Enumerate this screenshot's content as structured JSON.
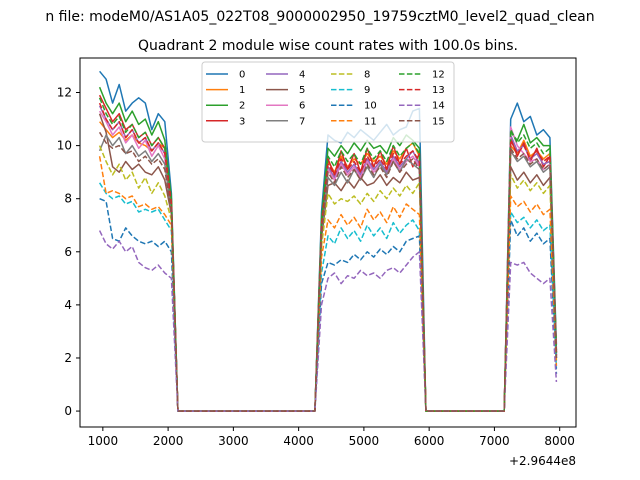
{
  "figure": {
    "suptitle": "n file: modeM0/AS1A05_022T08_9000002950_19759cztM0_level2_quad_clean"
  },
  "chart_data": {
    "type": "line",
    "title": "Quadrant 2 module wise count rates with 100.0s bins.",
    "xlabel": "",
    "ylabel": "",
    "x_offset_label": "+2.9644e8",
    "xlim": [
      650,
      8250
    ],
    "ylim": [
      -0.6,
      13.3
    ],
    "xticks": [
      1000,
      2000,
      3000,
      4000,
      5000,
      6000,
      7000,
      8000
    ],
    "yticks": [
      0,
      2,
      4,
      6,
      8,
      10,
      12
    ],
    "grid": false,
    "legend_location": "upper center",
    "legend_columns": 4,
    "x": [
      950,
      1050,
      1150,
      1250,
      1350,
      1450,
      1550,
      1650,
      1750,
      1850,
      1950,
      2050,
      2150,
      2250,
      2350,
      2450,
      2550,
      2650,
      2750,
      2850,
      2950,
      3050,
      3150,
      3250,
      3350,
      3450,
      3550,
      3650,
      3750,
      3850,
      3950,
      4050,
      4150,
      4250,
      4350,
      4450,
      4550,
      4650,
      4750,
      4850,
      4950,
      5050,
      5150,
      5250,
      5350,
      5450,
      5550,
      5650,
      5750,
      5850,
      5950,
      6050,
      6150,
      6250,
      6350,
      6450,
      6550,
      6650,
      6750,
      6850,
      6950,
      7050,
      7150,
      7250,
      7350,
      7450,
      7550,
      7650,
      7750,
      7850,
      7950
    ],
    "series": [
      {
        "name": "0",
        "color": "#1f77b4",
        "dash": "solid",
        "values": [
          12.8,
          12.5,
          11.6,
          12.3,
          11.3,
          11.6,
          11.8,
          11.6,
          10.6,
          11.2,
          10.9,
          8.2,
          0,
          0,
          0,
          0,
          0,
          0,
          0,
          0,
          0,
          0,
          0,
          0,
          0,
          0,
          0,
          0,
          0,
          0,
          0,
          0,
          0,
          0,
          7.5,
          10.4,
          10.2,
          10.1,
          10.5,
          10.3,
          10.6,
          10.4,
          10.2,
          10.5,
          10.8,
          10.4,
          10.6,
          10.7,
          11.3,
          11.4,
          0,
          0,
          0,
          0,
          0,
          0,
          0,
          0,
          0,
          0,
          0,
          0,
          0,
          11.0,
          11.6,
          10.9,
          11.1,
          10.4,
          10.6,
          10.3,
          2.5
        ]
      },
      {
        "name": "1",
        "color": "#ff7f0e",
        "dash": "solid",
        "values": [
          10.9,
          10.6,
          10.3,
          10.5,
          10.2,
          10.4,
          10.1,
          10.0,
          9.8,
          10.1,
          9.9,
          7.9,
          0,
          0,
          0,
          0,
          0,
          0,
          0,
          0,
          0,
          0,
          0,
          0,
          0,
          0,
          0,
          0,
          0,
          0,
          0,
          0,
          0,
          0,
          6.8,
          9.4,
          9.0,
          9.6,
          9.2,
          9.5,
          9.3,
          9.7,
          9.4,
          9.6,
          9.3,
          9.8,
          9.5,
          9.9,
          10.1,
          9.6,
          0,
          0,
          0,
          0,
          0,
          0,
          0,
          0,
          0,
          0,
          0,
          0,
          0,
          10.0,
          9.7,
          10.2,
          9.6,
          9.8,
          9.5,
          9.7,
          2.2
        ]
      },
      {
        "name": "2",
        "color": "#2ca02c",
        "dash": "solid",
        "values": [
          12.2,
          11.6,
          11.2,
          11.6,
          10.9,
          11.3,
          10.8,
          11.0,
          10.4,
          10.9,
          10.2,
          8.0,
          0,
          0,
          0,
          0,
          0,
          0,
          0,
          0,
          0,
          0,
          0,
          0,
          0,
          0,
          0,
          0,
          0,
          0,
          0,
          0,
          0,
          0,
          7.2,
          9.9,
          9.6,
          10.0,
          9.7,
          10.1,
          9.8,
          10.2,
          9.9,
          10.0,
          9.7,
          10.3,
          10.0,
          10.4,
          10.2,
          9.9,
          0,
          0,
          0,
          0,
          0,
          0,
          0,
          0,
          0,
          0,
          0,
          0,
          0,
          10.5,
          10.2,
          10.8,
          10.1,
          10.3,
          10.0,
          10.0,
          2.3
        ]
      },
      {
        "name": "3",
        "color": "#d62728",
        "dash": "solid",
        "values": [
          11.9,
          11.4,
          10.9,
          11.2,
          10.6,
          10.8,
          10.3,
          10.5,
          10.0,
          10.3,
          9.9,
          7.8,
          0,
          0,
          0,
          0,
          0,
          0,
          0,
          0,
          0,
          0,
          0,
          0,
          0,
          0,
          0,
          0,
          0,
          0,
          0,
          0,
          0,
          0,
          7.0,
          9.5,
          8.9,
          9.8,
          9.1,
          9.7,
          9.0,
          9.9,
          9.2,
          9.8,
          9.1,
          10.0,
          9.3,
          9.9,
          9.2,
          9.7,
          0,
          0,
          0,
          0,
          0,
          0,
          0,
          0,
          0,
          0,
          0,
          0,
          0,
          10.3,
          9.6,
          10.1,
          9.4,
          9.9,
          9.2,
          9.6,
          2.2
        ]
      },
      {
        "name": "4",
        "color": "#9467bd",
        "dash": "solid",
        "values": [
          11.5,
          11.0,
          10.6,
          10.9,
          10.3,
          10.6,
          10.1,
          10.3,
          9.8,
          10.1,
          9.7,
          7.7,
          0,
          0,
          0,
          0,
          0,
          0,
          0,
          0,
          0,
          0,
          0,
          0,
          0,
          0,
          0,
          0,
          0,
          0,
          0,
          0,
          0,
          0,
          6.9,
          9.2,
          8.8,
          9.4,
          9.0,
          9.3,
          8.9,
          9.5,
          9.1,
          9.4,
          9.0,
          9.6,
          9.2,
          9.5,
          9.8,
          9.3,
          0,
          0,
          0,
          0,
          0,
          0,
          0,
          0,
          0,
          0,
          0,
          0,
          0,
          10.4,
          9.8,
          10.0,
          9.5,
          9.7,
          9.3,
          9.4,
          2.1
        ]
      },
      {
        "name": "5",
        "color": "#8c564b",
        "dash": "solid",
        "values": [
          11.2,
          10.5,
          9.2,
          9.0,
          9.4,
          9.1,
          9.3,
          9.0,
          8.9,
          9.2,
          8.7,
          7.4,
          0,
          0,
          0,
          0,
          0,
          0,
          0,
          0,
          0,
          0,
          0,
          0,
          0,
          0,
          0,
          0,
          0,
          0,
          0,
          0,
          0,
          0,
          6.5,
          8.5,
          8.6,
          8.3,
          8.7,
          8.4,
          8.8,
          8.5,
          8.6,
          8.9,
          8.5,
          8.8,
          8.6,
          9.0,
          8.7,
          8.8,
          0,
          0,
          0,
          0,
          0,
          0,
          0,
          0,
          0,
          0,
          0,
          0,
          0,
          9.2,
          8.7,
          9.0,
          8.6,
          8.9,
          8.5,
          8.8,
          2.0
        ]
      },
      {
        "name": "6",
        "color": "#e377c2",
        "dash": "solid",
        "values": [
          11.3,
          10.9,
          10.4,
          10.7,
          10.1,
          10.4,
          9.9,
          10.2,
          9.6,
          10.0,
          9.5,
          7.6,
          0,
          0,
          0,
          0,
          0,
          0,
          0,
          0,
          0,
          0,
          0,
          0,
          0,
          0,
          0,
          0,
          0,
          0,
          0,
          0,
          0,
          0,
          6.8,
          9.1,
          8.7,
          9.3,
          8.9,
          9.2,
          8.8,
          9.4,
          9.0,
          9.3,
          8.9,
          9.5,
          9.1,
          9.4,
          9.6,
          9.2,
          0,
          0,
          0,
          0,
          0,
          0,
          0,
          0,
          0,
          0,
          0,
          0,
          0,
          10.7,
          10.0,
          9.7,
          9.4,
          9.5,
          9.1,
          9.3,
          2.1
        ]
      },
      {
        "name": "7",
        "color": "#7f7f7f",
        "dash": "solid",
        "values": [
          9.8,
          10.4,
          10.0,
          10.3,
          9.7,
          10.0,
          9.6,
          9.8,
          9.4,
          9.7,
          9.3,
          7.5,
          0,
          0,
          0,
          0,
          0,
          0,
          0,
          0,
          0,
          0,
          0,
          0,
          0,
          0,
          0,
          0,
          0,
          0,
          0,
          0,
          0,
          0,
          6.6,
          8.8,
          8.5,
          9.0,
          8.6,
          9.1,
          8.7,
          9.2,
          8.8,
          9.3,
          8.9,
          9.4,
          9.0,
          9.5,
          9.3,
          9.1,
          0,
          0,
          0,
          0,
          0,
          0,
          0,
          0,
          0,
          0,
          0,
          0,
          0,
          9.8,
          9.4,
          9.6,
          9.2,
          9.4,
          9.0,
          9.2,
          2.0
        ]
      },
      {
        "name": "8",
        "color": "#bcbd22",
        "dash": "dashed",
        "values": [
          10.0,
          9.4,
          8.9,
          9.3,
          8.7,
          9.0,
          8.4,
          8.8,
          8.2,
          8.6,
          8.1,
          7.2,
          0,
          0,
          0,
          0,
          0,
          0,
          0,
          0,
          0,
          0,
          0,
          0,
          0,
          0,
          0,
          0,
          0,
          0,
          0,
          0,
          0,
          0,
          6.2,
          8.2,
          7.8,
          8.0,
          7.9,
          8.1,
          7.8,
          8.2,
          7.9,
          8.3,
          8.0,
          8.4,
          8.1,
          8.5,
          8.2,
          8.6,
          0,
          0,
          0,
          0,
          0,
          0,
          0,
          0,
          0,
          0,
          0,
          0,
          0,
          8.9,
          8.4,
          8.7,
          8.3,
          8.6,
          8.2,
          8.5,
          1.9
        ]
      },
      {
        "name": "9",
        "color": "#17becf",
        "dash": "dashed",
        "values": [
          8.6,
          8.2,
          8.0,
          8.1,
          7.8,
          7.9,
          7.5,
          7.6,
          7.5,
          7.6,
          7.2,
          6.8,
          0,
          0,
          0,
          0,
          0,
          0,
          0,
          0,
          0,
          0,
          0,
          0,
          0,
          0,
          0,
          0,
          0,
          0,
          0,
          0,
          0,
          0,
          5.2,
          6.6,
          6.3,
          6.9,
          6.5,
          6.8,
          6.4,
          7.0,
          6.6,
          6.9,
          6.5,
          7.1,
          6.7,
          7.0,
          7.2,
          6.8,
          0,
          0,
          0,
          0,
          0,
          0,
          0,
          0,
          0,
          0,
          0,
          0,
          0,
          7.5,
          7.1,
          7.3,
          6.9,
          7.2,
          6.8,
          7.0,
          1.6
        ]
      },
      {
        "name": "10",
        "color": "#1f77b4",
        "dash": "dashed",
        "values": [
          8.0,
          7.9,
          6.5,
          6.4,
          6.9,
          6.6,
          6.4,
          6.3,
          6.4,
          6.2,
          6.4,
          6.0,
          0,
          0,
          0,
          0,
          0,
          0,
          0,
          0,
          0,
          0,
          0,
          0,
          0,
          0,
          0,
          0,
          0,
          0,
          0,
          0,
          0,
          0,
          4.8,
          5.6,
          5.5,
          5.7,
          5.6,
          5.9,
          5.7,
          6.0,
          5.8,
          6.1,
          5.9,
          6.2,
          6.0,
          6.4,
          6.5,
          6.6,
          0,
          0,
          0,
          0,
          0,
          0,
          0,
          0,
          0,
          0,
          0,
          0,
          0,
          7.2,
          6.6,
          6.9,
          6.4,
          6.7,
          6.3,
          6.5,
          1.4
        ]
      },
      {
        "name": "11",
        "color": "#ff7f0e",
        "dash": "dashed",
        "values": [
          9.6,
          8.2,
          8.3,
          8.2,
          8.0,
          8.1,
          7.7,
          7.8,
          7.6,
          7.7,
          7.4,
          7.0,
          0,
          0,
          0,
          0,
          0,
          0,
          0,
          0,
          0,
          0,
          0,
          0,
          0,
          0,
          0,
          0,
          0,
          0,
          0,
          0,
          0,
          0,
          5.8,
          7.2,
          6.9,
          7.4,
          7.0,
          7.3,
          6.9,
          7.6,
          7.2,
          7.5,
          7.1,
          7.7,
          7.3,
          7.8,
          7.6,
          7.4,
          0,
          0,
          0,
          0,
          0,
          0,
          0,
          0,
          0,
          0,
          0,
          0,
          0,
          8.1,
          7.7,
          7.9,
          7.5,
          7.8,
          7.4,
          7.6,
          1.7
        ]
      },
      {
        "name": "12",
        "color": "#2ca02c",
        "dash": "dashed",
        "values": [
          11.8,
          11.2,
          10.8,
          11.1,
          10.5,
          10.8,
          10.3,
          10.5,
          10.0,
          10.3,
          9.9,
          7.9,
          0,
          0,
          0,
          0,
          0,
          0,
          0,
          0,
          0,
          0,
          0,
          0,
          0,
          0,
          0,
          0,
          0,
          0,
          0,
          0,
          0,
          0,
          7.0,
          9.6,
          9.2,
          9.8,
          9.4,
          9.7,
          9.3,
          9.9,
          9.5,
          9.8,
          9.4,
          10.0,
          9.6,
          9.9,
          10.1,
          9.7,
          0,
          0,
          0,
          0,
          0,
          0,
          0,
          0,
          0,
          0,
          0,
          0,
          0,
          10.6,
          10.1,
          10.4,
          9.9,
          10.1,
          9.7,
          9.9,
          2.2
        ]
      },
      {
        "name": "13",
        "color": "#d62728",
        "dash": "dashed",
        "values": [
          11.6,
          11.0,
          10.6,
          10.9,
          10.3,
          10.6,
          10.1,
          10.3,
          9.8,
          10.1,
          9.7,
          7.8,
          0,
          0,
          0,
          0,
          0,
          0,
          0,
          0,
          0,
          0,
          0,
          0,
          0,
          0,
          0,
          0,
          0,
          0,
          0,
          0,
          0,
          0,
          6.9,
          9.3,
          8.9,
          9.5,
          9.1,
          9.4,
          9.0,
          9.6,
          9.2,
          9.5,
          9.1,
          9.7,
          9.3,
          9.6,
          9.8,
          9.4,
          0,
          0,
          0,
          0,
          0,
          0,
          0,
          0,
          0,
          0,
          0,
          0,
          0,
          10.2,
          9.7,
          10.0,
          9.5,
          9.8,
          9.4,
          9.6,
          2.1
        ]
      },
      {
        "name": "14",
        "color": "#9467bd",
        "dash": "dashed",
        "values": [
          6.8,
          6.3,
          6.1,
          6.4,
          6.0,
          6.2,
          5.6,
          5.4,
          5.3,
          5.5,
          5.2,
          5.0,
          0,
          0,
          0,
          0,
          0,
          0,
          0,
          0,
          0,
          0,
          0,
          0,
          0,
          0,
          0,
          0,
          0,
          0,
          0,
          0,
          0,
          0,
          4.0,
          5.0,
          5.2,
          4.8,
          5.1,
          5.0,
          5.3,
          5.1,
          5.2,
          5.0,
          5.3,
          5.4,
          5.2,
          5.5,
          5.8,
          6.0,
          0,
          0,
          0,
          0,
          0,
          0,
          0,
          0,
          0,
          0,
          0,
          0,
          0,
          5.6,
          5.5,
          5.6,
          5.2,
          5.0,
          4.8,
          5.0,
          1.1
        ]
      },
      {
        "name": "15",
        "color": "#8c564b",
        "dash": "dashed",
        "values": [
          10.5,
          10.1,
          9.9,
          10.0,
          9.7,
          9.8,
          9.4,
          9.6,
          9.3,
          9.5,
          9.1,
          7.5,
          0,
          0,
          0,
          0,
          0,
          0,
          0,
          0,
          0,
          0,
          0,
          0,
          0,
          0,
          0,
          0,
          0,
          0,
          0,
          0,
          0,
          0,
          6.6,
          9.0,
          8.6,
          9.2,
          8.8,
          9.1,
          8.7,
          9.3,
          8.9,
          9.2,
          8.8,
          9.4,
          9.0,
          9.3,
          9.5,
          9.1,
          0,
          0,
          0,
          0,
          0,
          0,
          0,
          0,
          0,
          0,
          0,
          0,
          0,
          9.9,
          9.5,
          9.7,
          9.3,
          9.5,
          9.1,
          9.3,
          2.0
        ]
      }
    ]
  }
}
